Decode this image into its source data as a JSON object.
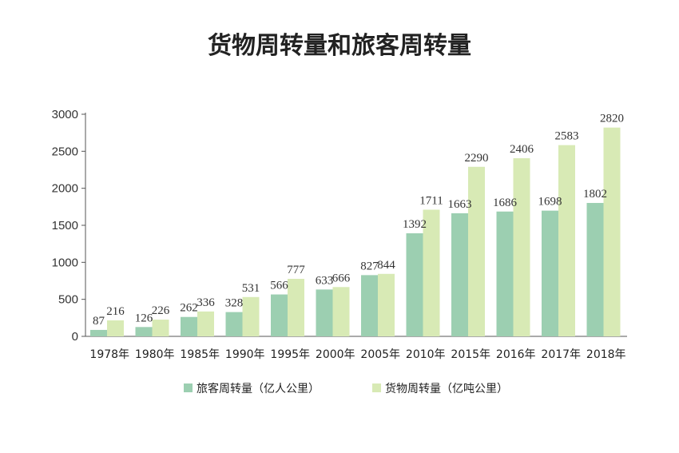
{
  "chart_data": {
    "type": "bar",
    "title": "货物周转量和旅客周转量",
    "categories": [
      "1978年",
      "1980年",
      "1985年",
      "1990年",
      "1995年",
      "2000年",
      "2005年",
      "2010年",
      "2015年",
      "2016年",
      "2017年",
      "2018年"
    ],
    "series": [
      {
        "name": "旅客周转量（亿人公里）",
        "color": "#9ccfb1",
        "values": [
          87,
          126,
          262,
          328,
          566,
          633,
          827,
          1392,
          1663,
          1686,
          1698,
          1802
        ]
      },
      {
        "name": "货物周转量（亿吨公里）",
        "color": "#d8eab5",
        "values": [
          216,
          226,
          336,
          531,
          777,
          666,
          844,
          1711,
          2290,
          2406,
          2583,
          2820
        ]
      }
    ],
    "yticks": [
      0,
      500,
      1000,
      1500,
      2000,
      2500,
      3000
    ],
    "ylim": [
      0,
      3000
    ],
    "grid": false,
    "legend_position": "bottom-center"
  }
}
